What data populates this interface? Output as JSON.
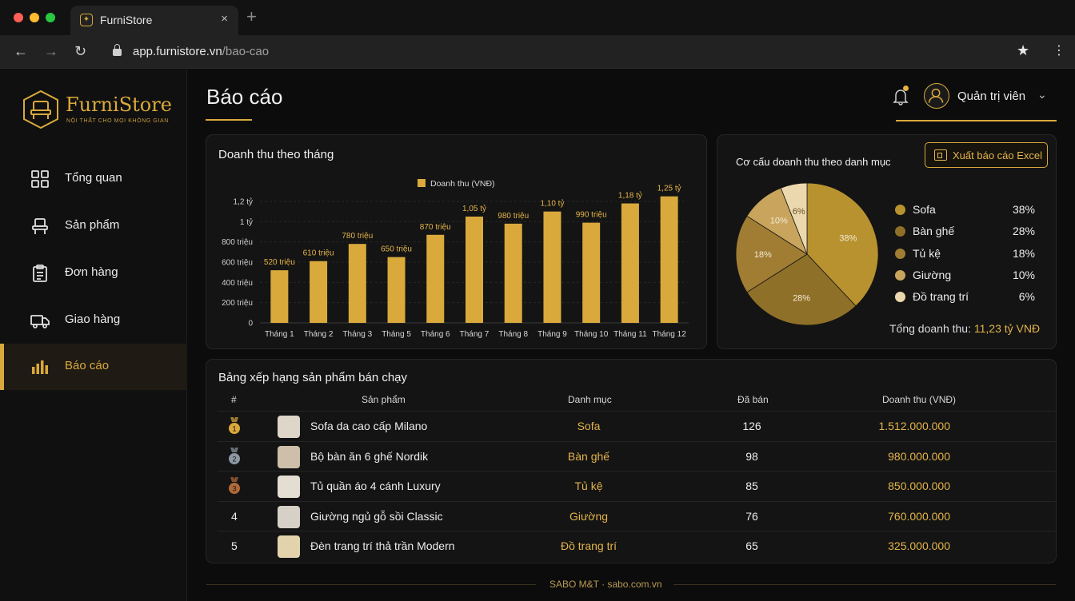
{
  "browser": {
    "tab_title": "FurniStore",
    "tab_close": "×",
    "new_tab": "+",
    "url_host": "app.furnistore.vn",
    "url_path": "/bao-cao"
  },
  "sidebar": {
    "logo_text": "FurniStore",
    "logo_tagline": "NỘI THẤT CHO MỌI KHÔNG GIAN",
    "items": [
      {
        "label": "Tổng quan",
        "icon": "grid-icon"
      },
      {
        "label": "Sản phẩm",
        "icon": "chair-icon"
      },
      {
        "label": "Đơn hàng",
        "icon": "clipboard-icon"
      },
      {
        "label": "Giao hàng",
        "icon": "truck-icon"
      },
      {
        "label": "Báo cáo",
        "icon": "bar-chart-icon",
        "active": true
      }
    ]
  },
  "header": {
    "title": "Báo cáo",
    "user_name": "Quản trị viên"
  },
  "revenue_chart": {
    "title": "Doanh thu theo tháng",
    "legend": "Doanh thu (VNĐ)",
    "y_ticks": [
      "0",
      "200 triệu",
      "400 triệu",
      "600 triệu",
      "800 triệu",
      "1 tỷ",
      "1,2 tỷ"
    ]
  },
  "pie_card": {
    "title": "Cơ cấu doanh thu theo danh mục",
    "export_label": "Xuất báo cáo Excel",
    "total_label": "Tổng doanh thu:",
    "total_value": "11,23 tỷ VNĐ"
  },
  "chart_data": [
    {
      "type": "bar",
      "title": "Doanh thu theo tháng",
      "categories": [
        "Tháng 1",
        "Tháng 2",
        "Tháng 3",
        "Tháng 5",
        "Tháng 6",
        "Tháng 7",
        "Tháng 8",
        "Tháng 9",
        "Tháng 10",
        "Tháng 11",
        "Tháng 12"
      ],
      "series": [
        {
          "name": "Doanh thu (VNĐ)",
          "values": [
            520,
            610,
            780,
            650,
            870,
            1050,
            980,
            1100,
            990,
            1180,
            1250
          ]
        }
      ],
      "data_labels": [
        "520 triệu",
        "610 triệu",
        "780 triệu",
        "650 triệu",
        "870 triệu",
        "1,05 tỷ",
        "980 triệu",
        "1,10 tỷ",
        "990 triệu",
        "1,18 tỷ",
        "1,25 tỷ"
      ],
      "ylim": [
        0,
        1200
      ],
      "y_unit": "triệu",
      "grid": true,
      "legend": "top-center",
      "color": "#d9a93c"
    },
    {
      "type": "pie",
      "title": "Cơ cấu doanh thu theo danh mục",
      "slices": [
        {
          "name": "Sofa",
          "value": 38,
          "label": "38%",
          "color": "#b8922f"
        },
        {
          "name": "Bàn ghế",
          "value": 28,
          "label": "28%",
          "color": "#8f7028"
        },
        {
          "name": "Tủ kệ",
          "value": 18,
          "label": "18%",
          "color": "#a07d33"
        },
        {
          "name": "Giường",
          "value": 10,
          "label": "10%",
          "color": "#c9a45c"
        },
        {
          "name": "Đồ trang trí",
          "value": 6,
          "label": "6%",
          "color": "#ecd8ae"
        }
      ],
      "legend": "right"
    }
  ],
  "ranking": {
    "title": "Bảng xếp hạng sản phẩm bán chạy",
    "columns": [
      "#",
      "Sản phẩm",
      "Danh mục",
      "Đã bán",
      "Doanh thu (VNĐ)"
    ],
    "rows": [
      {
        "rank": "1",
        "medal": "gold",
        "product": "Sofa da cao cấp Milano",
        "category": "Sofa",
        "sold": "126",
        "revenue": "1.512.000.000"
      },
      {
        "rank": "2",
        "medal": "silver",
        "product": "Bộ bàn ăn 6 ghế Nordik",
        "category": "Bàn ghế",
        "sold": "98",
        "revenue": "980.000.000"
      },
      {
        "rank": "3",
        "medal": "bronze",
        "product": "Tủ quần áo 4 cánh Luxury",
        "category": "Tủ kệ",
        "sold": "85",
        "revenue": "850.000.000"
      },
      {
        "rank": "4",
        "medal": "",
        "product": "Giường ngủ gỗ sồi Classic",
        "category": "Giường",
        "sold": "76",
        "revenue": "760.000.000"
      },
      {
        "rank": "5",
        "medal": "",
        "product": "Đèn trang trí thả trần Modern",
        "category": "Đồ trang trí",
        "sold": "65",
        "revenue": "325.000.000"
      }
    ]
  },
  "footer": {
    "text": "SABO M&T · sabo.com.vn"
  }
}
